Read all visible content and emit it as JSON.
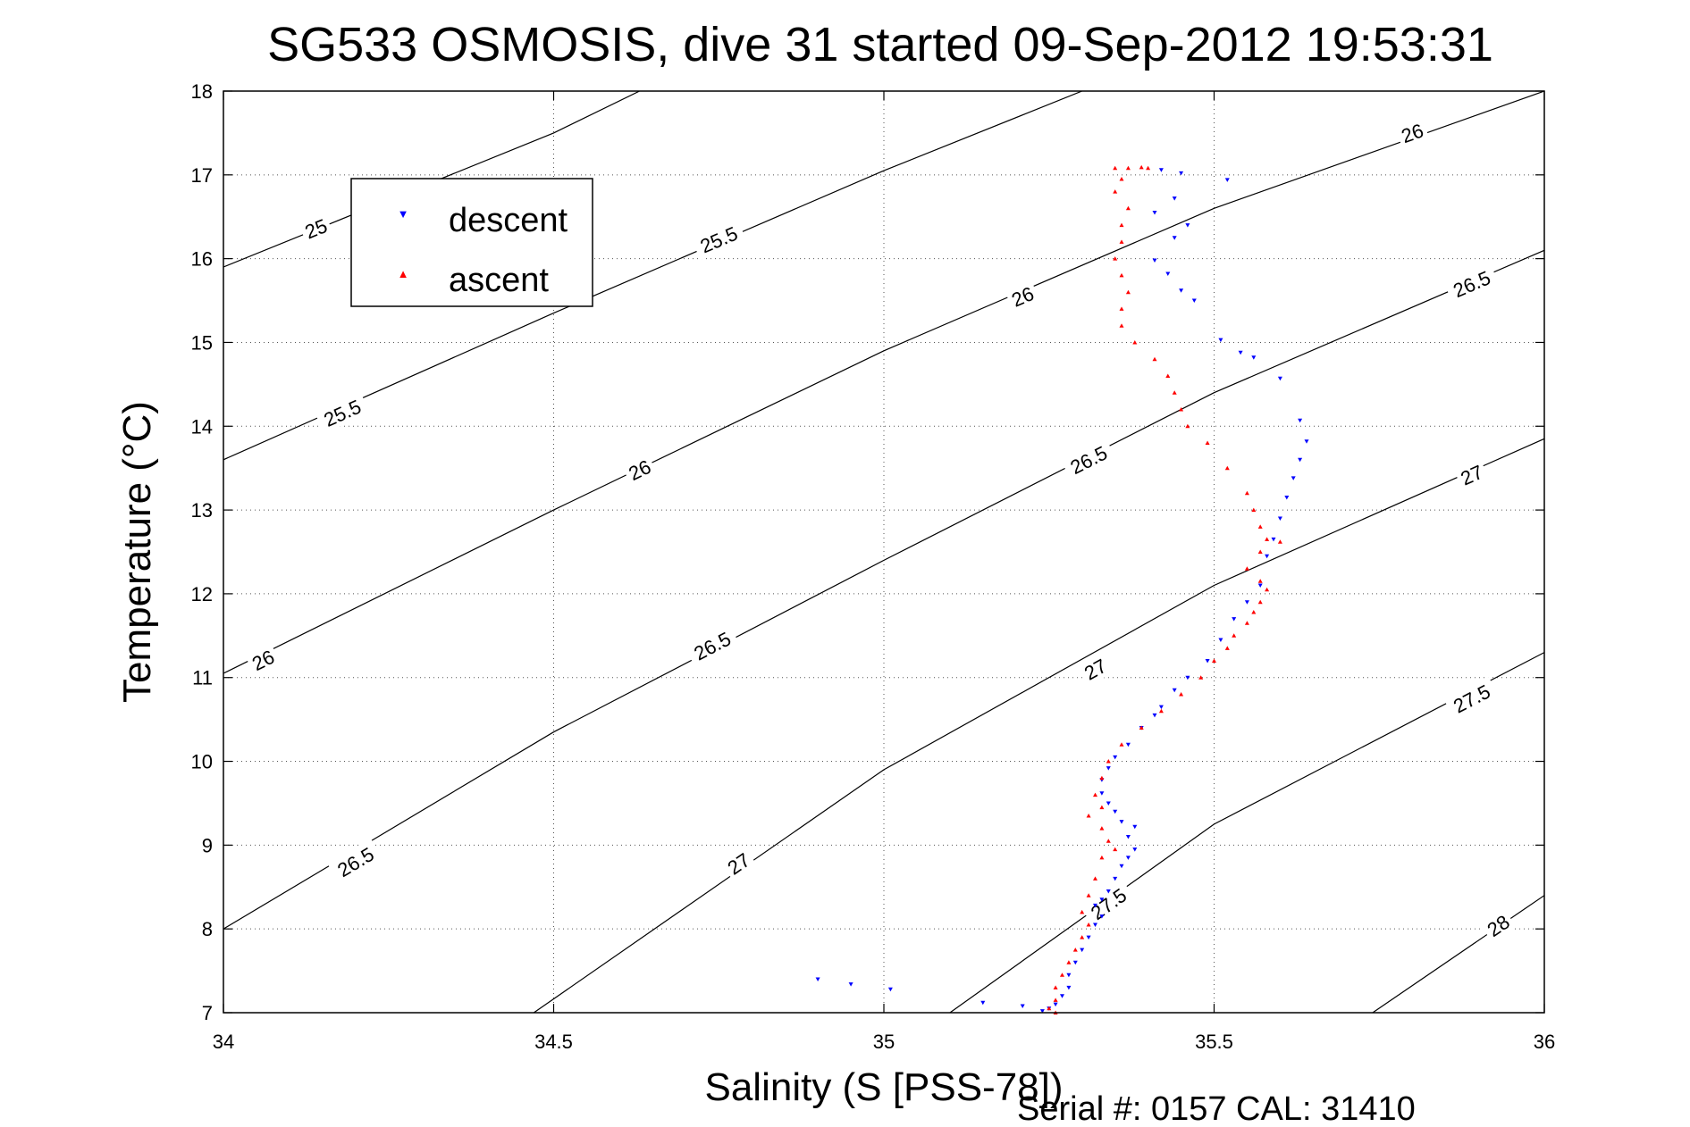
{
  "chart_data": {
    "type": "scatter",
    "title": "SG533 OSMOSIS, dive 31 started 09-Sep-2012 19:53:31",
    "xlabel": "Salinity (S [PSS-78])",
    "ylabel": "Temperature (°C)",
    "xlim": [
      34,
      36
    ],
    "ylim": [
      7,
      18
    ],
    "xticks": [
      34,
      34.5,
      35,
      35.5,
      36
    ],
    "xtick_labels": [
      "34",
      "34.5",
      "35",
      "35.5",
      "36"
    ],
    "yticks": [
      7,
      8,
      9,
      10,
      11,
      12,
      13,
      14,
      15,
      16,
      17,
      18
    ],
    "ytick_labels": [
      "7",
      "8",
      "9",
      "10",
      "11",
      "12",
      "13",
      "14",
      "15",
      "16",
      "17",
      "18"
    ],
    "grid": true,
    "legend_position": "top-left",
    "footer": "Serial #: 0157  CAL: 31410",
    "colors": {
      "descent": "#0000ff",
      "ascent": "#ff0000",
      "contour": "#000000"
    },
    "series": [
      {
        "name": "descent",
        "marker": "triangle-down",
        "points": [
          [
            35.42,
            17.06
          ],
          [
            35.45,
            17.02
          ],
          [
            35.52,
            16.94
          ],
          [
            35.44,
            16.72
          ],
          [
            35.41,
            16.55
          ],
          [
            35.46,
            16.4
          ],
          [
            35.44,
            16.25
          ],
          [
            35.41,
            15.98
          ],
          [
            35.43,
            15.82
          ],
          [
            35.45,
            15.62
          ],
          [
            35.47,
            15.5
          ],
          [
            35.51,
            15.03
          ],
          [
            35.54,
            14.88
          ],
          [
            35.56,
            14.82
          ],
          [
            35.6,
            14.57
          ],
          [
            35.63,
            14.07
          ],
          [
            35.64,
            13.82
          ],
          [
            35.63,
            13.6
          ],
          [
            35.62,
            13.38
          ],
          [
            35.61,
            13.15
          ],
          [
            35.6,
            12.9
          ],
          [
            35.59,
            12.65
          ],
          [
            35.58,
            12.45
          ],
          [
            35.57,
            12.1
          ],
          [
            35.55,
            11.9
          ],
          [
            35.53,
            11.7
          ],
          [
            35.51,
            11.45
          ],
          [
            35.49,
            11.2
          ],
          [
            35.46,
            11.0
          ],
          [
            35.44,
            10.85
          ],
          [
            35.42,
            10.65
          ],
          [
            35.41,
            10.55
          ],
          [
            35.39,
            10.4
          ],
          [
            35.37,
            10.2
          ],
          [
            35.35,
            10.05
          ],
          [
            35.34,
            9.92
          ],
          [
            35.33,
            9.78
          ],
          [
            35.33,
            9.62
          ],
          [
            35.34,
            9.5
          ],
          [
            35.35,
            9.4
          ],
          [
            35.36,
            9.28
          ],
          [
            35.38,
            9.22
          ],
          [
            35.37,
            9.1
          ],
          [
            35.38,
            8.95
          ],
          [
            35.37,
            8.85
          ],
          [
            35.36,
            8.75
          ],
          [
            35.35,
            8.6
          ],
          [
            35.34,
            8.45
          ],
          [
            35.33,
            8.35
          ],
          [
            35.32,
            8.28
          ],
          [
            35.33,
            8.15
          ],
          [
            35.32,
            8.05
          ],
          [
            35.31,
            7.9
          ],
          [
            35.3,
            7.75
          ],
          [
            35.29,
            7.6
          ],
          [
            35.28,
            7.45
          ],
          [
            35.28,
            7.3
          ],
          [
            35.27,
            7.2
          ],
          [
            35.26,
            7.1
          ],
          [
            35.25,
            7.05
          ],
          [
            35.24,
            7.02
          ],
          [
            35.21,
            7.08
          ],
          [
            35.15,
            7.12
          ],
          [
            35.01,
            7.28
          ],
          [
            34.95,
            7.34
          ],
          [
            34.9,
            7.4
          ]
        ]
      },
      {
        "name": "ascent",
        "marker": "triangle-up",
        "points": [
          [
            35.35,
            17.08
          ],
          [
            35.37,
            17.08
          ],
          [
            35.39,
            17.09
          ],
          [
            35.4,
            17.08
          ],
          [
            35.36,
            16.95
          ],
          [
            35.35,
            16.8
          ],
          [
            35.37,
            16.6
          ],
          [
            35.36,
            16.4
          ],
          [
            35.36,
            16.2
          ],
          [
            35.35,
            16.0
          ],
          [
            35.36,
            15.8
          ],
          [
            35.37,
            15.6
          ],
          [
            35.36,
            15.4
          ],
          [
            35.36,
            15.2
          ],
          [
            35.38,
            15.0
          ],
          [
            35.41,
            14.8
          ],
          [
            35.43,
            14.6
          ],
          [
            35.44,
            14.4
          ],
          [
            35.45,
            14.2
          ],
          [
            35.46,
            14.0
          ],
          [
            35.49,
            13.8
          ],
          [
            35.52,
            13.5
          ],
          [
            35.55,
            13.2
          ],
          [
            35.56,
            13.0
          ],
          [
            35.57,
            12.8
          ],
          [
            35.58,
            12.65
          ],
          [
            35.6,
            12.62
          ],
          [
            35.57,
            12.5
          ],
          [
            35.55,
            12.3
          ],
          [
            35.57,
            12.15
          ],
          [
            35.58,
            12.05
          ],
          [
            35.57,
            11.9
          ],
          [
            35.56,
            11.78
          ],
          [
            35.55,
            11.65
          ],
          [
            35.53,
            11.5
          ],
          [
            35.52,
            11.35
          ],
          [
            35.5,
            11.2
          ],
          [
            35.48,
            11.0
          ],
          [
            35.45,
            10.8
          ],
          [
            35.42,
            10.6
          ],
          [
            35.39,
            10.4
          ],
          [
            35.36,
            10.2
          ],
          [
            35.34,
            10.0
          ],
          [
            35.33,
            9.8
          ],
          [
            35.32,
            9.6
          ],
          [
            35.33,
            9.45
          ],
          [
            35.31,
            9.35
          ],
          [
            35.33,
            9.2
          ],
          [
            35.34,
            9.05
          ],
          [
            35.35,
            8.95
          ],
          [
            35.33,
            8.85
          ],
          [
            35.32,
            8.6
          ],
          [
            35.31,
            8.4
          ],
          [
            35.3,
            8.2
          ],
          [
            35.31,
            8.05
          ],
          [
            35.3,
            7.9
          ],
          [
            35.29,
            7.75
          ],
          [
            35.28,
            7.6
          ],
          [
            35.27,
            7.45
          ],
          [
            35.26,
            7.3
          ],
          [
            35.26,
            7.15
          ],
          [
            35.25,
            7.05
          ],
          [
            35.26,
            7.0
          ]
        ]
      }
    ],
    "contours": [
      {
        "label": "25",
        "points": [
          [
            34.0,
            15.9
          ],
          [
            34.25,
            16.7
          ],
          [
            34.5,
            17.5
          ],
          [
            34.63,
            18.0
          ]
        ],
        "label_at": [
          34.14,
          16.36
        ]
      },
      {
        "label": "25.5",
        "points": [
          [
            34.0,
            13.6
          ],
          [
            34.5,
            15.35
          ],
          [
            35.0,
            17.05
          ],
          [
            35.3,
            18.0
          ]
        ],
        "label_at": [
          34.18,
          14.16
        ]
      },
      {
        "label": "25.5",
        "points": [
          [
            34.0,
            13.6
          ],
          [
            34.5,
            15.35
          ],
          [
            35.0,
            17.05
          ],
          [
            35.3,
            18.0
          ]
        ],
        "label_at": [
          34.75,
          16.23
        ]
      },
      {
        "label": "26",
        "points": [
          [
            34.0,
            11.05
          ],
          [
            34.5,
            13.0
          ],
          [
            35.0,
            14.9
          ],
          [
            35.5,
            16.6
          ],
          [
            36.0,
            18.0
          ]
        ],
        "label_at": [
          34.06,
          11.21
        ]
      },
      {
        "label": "26",
        "points": [
          [
            34.0,
            11.05
          ],
          [
            34.5,
            13.0
          ],
          [
            35.0,
            14.9
          ],
          [
            35.5,
            16.6
          ],
          [
            36.0,
            18.0
          ]
        ],
        "label_at": [
          34.63,
          13.48
        ]
      },
      {
        "label": "26",
        "points": [
          [
            34.0,
            11.05
          ],
          [
            34.5,
            13.0
          ],
          [
            35.0,
            14.9
          ],
          [
            35.5,
            16.6
          ],
          [
            36.0,
            18.0
          ]
        ],
        "label_at": [
          35.21,
          15.55
        ]
      },
      {
        "label": "26",
        "points": [
          [
            34.0,
            11.05
          ],
          [
            34.5,
            13.0
          ],
          [
            35.0,
            14.9
          ],
          [
            35.5,
            16.6
          ],
          [
            36.0,
            18.0
          ]
        ],
        "label_at": [
          35.8,
          17.5
        ]
      },
      {
        "label": "26.5",
        "points": [
          [
            34.0,
            8.0
          ],
          [
            34.5,
            10.35
          ],
          [
            35.0,
            12.4
          ],
          [
            35.5,
            14.4
          ],
          [
            36.0,
            16.1
          ]
        ],
        "label_at": [
          34.2,
          8.8
        ]
      },
      {
        "label": "26.5",
        "points": [
          [
            34.0,
            8.0
          ],
          [
            34.5,
            10.35
          ],
          [
            35.0,
            12.4
          ],
          [
            35.5,
            14.4
          ],
          [
            36.0,
            16.1
          ]
        ],
        "label_at": [
          34.74,
          11.38
        ]
      },
      {
        "label": "26.5",
        "points": [
          [
            34.0,
            8.0
          ],
          [
            34.5,
            10.35
          ],
          [
            35.0,
            12.4
          ],
          [
            35.5,
            14.4
          ],
          [
            36.0,
            16.1
          ]
        ],
        "label_at": [
          35.31,
          13.6
        ]
      },
      {
        "label": "26.5",
        "points": [
          [
            34.0,
            8.0
          ],
          [
            34.5,
            10.35
          ],
          [
            35.0,
            12.4
          ],
          [
            35.5,
            14.4
          ],
          [
            36.0,
            16.1
          ]
        ],
        "label_at": [
          35.89,
          15.7
        ]
      },
      {
        "label": "27",
        "points": [
          [
            34.47,
            7.0
          ],
          [
            35.0,
            9.9
          ],
          [
            35.5,
            12.1
          ],
          [
            36.0,
            13.85
          ]
        ],
        "label_at": [
          34.78,
          8.78
        ]
      },
      {
        "label": "27",
        "points": [
          [
            34.47,
            7.0
          ],
          [
            35.0,
            9.9
          ],
          [
            35.5,
            12.1
          ],
          [
            36.0,
            13.85
          ]
        ],
        "label_at": [
          35.32,
          11.1
        ]
      },
      {
        "label": "27",
        "points": [
          [
            34.47,
            7.0
          ],
          [
            35.0,
            9.9
          ],
          [
            35.5,
            12.1
          ],
          [
            36.0,
            13.85
          ]
        ],
        "label_at": [
          35.89,
          13.42
        ]
      },
      {
        "label": "27.5",
        "points": [
          [
            35.1,
            7.0
          ],
          [
            35.5,
            9.25
          ],
          [
            36.0,
            11.3
          ]
        ],
        "label_at": [
          35.34,
          8.3
        ]
      },
      {
        "label": "27.5",
        "points": [
          [
            35.1,
            7.0
          ],
          [
            35.5,
            9.25
          ],
          [
            36.0,
            11.3
          ]
        ],
        "label_at": [
          35.89,
          10.75
        ]
      },
      {
        "label": "28",
        "points": [
          [
            35.74,
            7.0
          ],
          [
            36.0,
            8.4
          ]
        ],
        "label_at": [
          35.93,
          8.04
        ]
      }
    ]
  }
}
